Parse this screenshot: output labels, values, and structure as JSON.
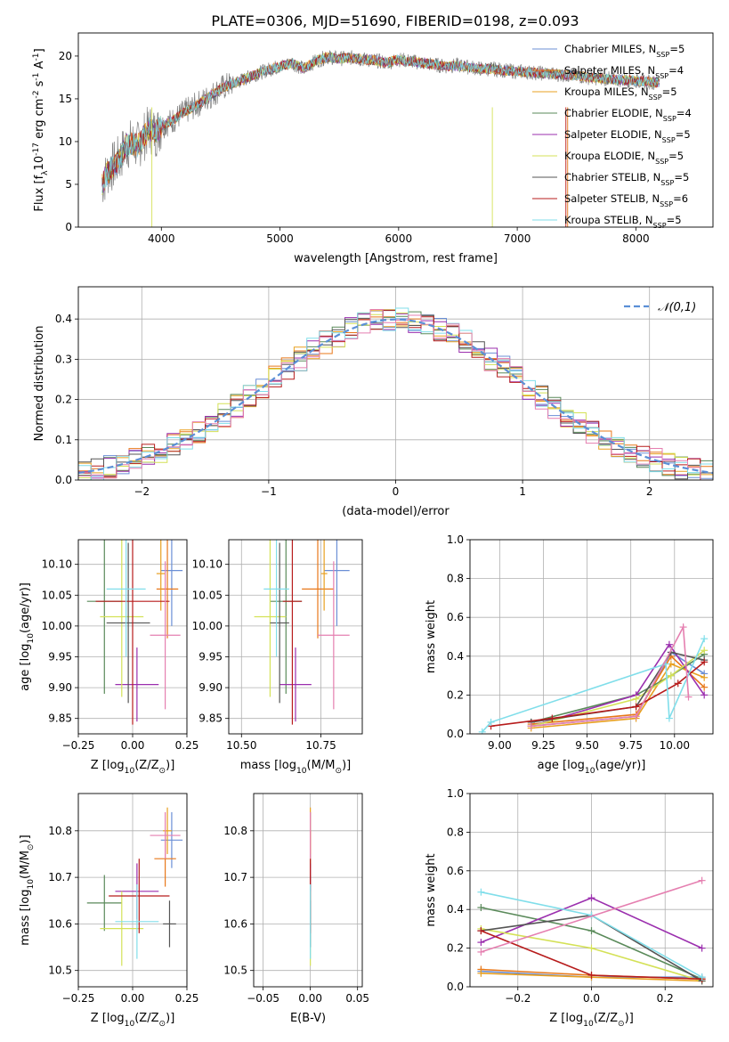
{
  "figure": {
    "title": "PLATE=0306, MJD=51690, FIBERID=0198, z=0.093"
  },
  "model_colors": [
    "#6b8fd6",
    "#e8781a",
    "#e8a020",
    "#5a8a5a",
    "#9b2fae",
    "#d4e157",
    "#555555",
    "#b71c1c",
    "#80deea",
    "#e57fb0"
  ],
  "chart_data": [
    {
      "id": "spectrum",
      "type": "line",
      "title": "PLATE=0306, MJD=51690, FIBERID=0198, z=0.093",
      "xlabel": "wavelength [Angstrom, rest frame]",
      "ylabel": "Flux [f$_\\lambda$10$^{-17}$ erg cm$^{-2}$ s$^{-1}$ A$^{-1}$]",
      "xlim": [
        3300,
        8650
      ],
      "ylim": [
        0,
        22.7
      ],
      "xticks": [
        4000,
        5000,
        6000,
        7000,
        8000
      ],
      "yticks": [
        0,
        5,
        10,
        15,
        20
      ],
      "grid": false,
      "legend_position": "top-right",
      "x": [
        3500,
        3550,
        3600,
        3650,
        3700,
        3750,
        3800,
        3850,
        3900,
        3950,
        4000,
        4100,
        4200,
        4300,
        4400,
        4500,
        4600,
        4700,
        4800,
        4900,
        5000,
        5100,
        5200,
        5300,
        5400,
        5500,
        5600,
        5700,
        5800,
        5900,
        6000,
        6100,
        6200,
        6300,
        6400,
        6500,
        6600,
        6700,
        6800,
        6900,
        7000,
        7100,
        7200,
        7300,
        7400,
        7500,
        7600,
        7700,
        7800,
        7900,
        8000,
        8100,
        8200
      ],
      "envelope": [
        5.0,
        6.5,
        7.2,
        8.0,
        9.5,
        9.8,
        9.5,
        10.5,
        11.5,
        11.0,
        11.8,
        12.5,
        13.5,
        14.3,
        15.2,
        16.2,
        16.8,
        17.3,
        17.9,
        18.4,
        18.8,
        19.2,
        18.5,
        19.4,
        19.9,
        19.7,
        19.8,
        19.6,
        19.5,
        19.2,
        19.6,
        19.4,
        19.2,
        19.0,
        18.8,
        18.9,
        18.7,
        18.5,
        18.5,
        18.3,
        18.2,
        18.1,
        18.0,
        17.9,
        17.8,
        17.7,
        17.5,
        17.4,
        17.3,
        17.2,
        17.1,
        17.0,
        16.9
      ],
      "series": [
        {
          "name": "Chabrier MILES, N$_{SSP}$=5"
        },
        {
          "name": "Salpeter MILES, N$_{SSP}$=4"
        },
        {
          "name": "Kroupa MILES, N$_{SSP}$=5"
        },
        {
          "name": "Chabrier ELODIE, N$_{SSP}$=4"
        },
        {
          "name": "Salpeter ELODIE, N$_{SSP}$=5"
        },
        {
          "name": "Kroupa ELODIE, N$_{SSP}$=5"
        },
        {
          "name": "Chabrier STELIB, N$_{SSP}$=5"
        },
        {
          "name": "Salpeter STELIB, N$_{SSP}$=6"
        },
        {
          "name": "Kroupa STELIB, N$_{SSP}$=5"
        }
      ]
    },
    {
      "id": "residuals",
      "type": "histogram",
      "xlabel": "(data-model)/error",
      "ylabel": "Normed distribution",
      "xlim": [
        -2.5,
        2.5
      ],
      "ylim": [
        0,
        0.48
      ],
      "xticks": [
        -2,
        -1,
        0,
        1,
        2
      ],
      "yticks": [
        0.0,
        0.1,
        0.2,
        0.3,
        0.4
      ],
      "grid": true,
      "legend": "$\\mathcal{N}(0,1)$",
      "legend_position": "top-right",
      "bin_width": 0.1
    },
    {
      "id": "age_vs_Z",
      "type": "errorbar",
      "xlabel": "Z [log$_{10}$(Z/Z$_\\odot$)]",
      "ylabel": "age  [log$_{10}$(age/yr)]",
      "xlim": [
        -0.25,
        0.25
      ],
      "ylim": [
        9.825,
        10.14
      ],
      "xticks": [
        -0.25,
        0.0,
        0.25
      ],
      "yticks": [
        9.85,
        9.9,
        9.95,
        10.0,
        10.05,
        10.1
      ],
      "grid": true,
      "points": [
        {
          "x": 0.18,
          "y": 10.09,
          "xerr": 0.05,
          "yerr": 0.09
        },
        {
          "x": 0.16,
          "y": 10.06,
          "xerr": 0.05,
          "yerr": 0.08
        },
        {
          "x": 0.13,
          "y": 10.085,
          "xerr": 0.02,
          "yerr": 0.06
        },
        {
          "x": -0.13,
          "y": 10.04,
          "xerr": 0.08,
          "yerr": 0.15
        },
        {
          "x": 0.02,
          "y": 9.905,
          "xerr": 0.1,
          "yerr": 0.06
        },
        {
          "x": -0.05,
          "y": 10.015,
          "xerr": 0.1,
          "yerr": 0.13
        },
        {
          "x": -0.02,
          "y": 10.005,
          "xerr": 0.1,
          "yerr": 0.13
        },
        {
          "x": 0.0,
          "y": 10.04,
          "xerr": 0.17,
          "yerr": 0.2
        },
        {
          "x": -0.03,
          "y": 10.06,
          "xerr": 0.09,
          "yerr": 0.11
        },
        {
          "x": 0.15,
          "y": 9.985,
          "xerr": 0.07,
          "yerr": 0.12
        }
      ]
    },
    {
      "id": "age_vs_mass",
      "type": "errorbar",
      "xlabel": "mass [log$_{10}$(M/M$_\\odot$)]",
      "ylabel": "",
      "xlim": [
        10.46,
        10.88
      ],
      "ylim": [
        9.825,
        10.14
      ],
      "xticks": [
        10.5,
        10.75
      ],
      "yticks": [
        9.85,
        9.9,
        9.95,
        10.0,
        10.05,
        10.1
      ],
      "grid": true,
      "points": [
        {
          "x": 10.8,
          "y": 10.09,
          "xerr": 0.04,
          "yerr": 0.09
        },
        {
          "x": 10.74,
          "y": 10.06,
          "xerr": 0.05,
          "yerr": 0.08
        },
        {
          "x": 10.76,
          "y": 10.085,
          "xerr": 0.01,
          "yerr": 0.06
        },
        {
          "x": 10.64,
          "y": 10.04,
          "xerr": 0.05,
          "yerr": 0.15
        },
        {
          "x": 10.67,
          "y": 9.905,
          "xerr": 0.05,
          "yerr": 0.06
        },
        {
          "x": 10.59,
          "y": 10.015,
          "xerr": 0.05,
          "yerr": 0.13
        },
        {
          "x": 10.62,
          "y": 10.005,
          "xerr": 0.03,
          "yerr": 0.13
        },
        {
          "x": 10.66,
          "y": 10.04,
          "xerr": 0.03,
          "yerr": 0.2
        },
        {
          "x": 10.61,
          "y": 10.06,
          "xerr": 0.04,
          "yerr": 0.11
        },
        {
          "x": 10.79,
          "y": 9.985,
          "xerr": 0.05,
          "yerr": 0.12
        }
      ]
    },
    {
      "id": "mass_weight_vs_age",
      "type": "line",
      "xlabel": "age  [log$_{10}$(age/yr)]",
      "ylabel": "mass weight",
      "xlim": [
        8.83,
        10.22
      ],
      "ylim": [
        0,
        1.0
      ],
      "xticks": [
        9.0,
        9.25,
        9.5,
        9.75,
        10.0
      ],
      "yticks": [
        0.0,
        0.2,
        0.4,
        0.6,
        0.8,
        1.0
      ],
      "grid": true,
      "series": [
        {
          "x": [
            9.18,
            9.78,
            9.98,
            10.17
          ],
          "y": [
            0.04,
            0.09,
            0.42,
            0.31
          ]
        },
        {
          "x": [
            9.18,
            9.78,
            9.98,
            10.17
          ],
          "y": [
            0.05,
            0.1,
            0.4,
            0.24
          ]
        },
        {
          "x": [
            9.18,
            9.78,
            9.98,
            10.17
          ],
          "y": [
            0.03,
            0.08,
            0.36,
            0.29
          ]
        },
        {
          "x": [
            9.18,
            9.78,
            9.98,
            10.17
          ],
          "y": [
            0.06,
            0.2,
            0.3,
            0.41
          ]
        },
        {
          "x": [
            9.18,
            9.78,
            9.97,
            10.17
          ],
          "y": [
            0.04,
            0.2,
            0.46,
            0.2
          ]
        },
        {
          "x": [
            9.18,
            9.78,
            9.98,
            10.17
          ],
          "y": [
            0.04,
            0.18,
            0.3,
            0.43
          ]
        },
        {
          "x": [
            9.18,
            9.78,
            9.98,
            10.17
          ],
          "y": [
            0.06,
            0.14,
            0.42,
            0.38
          ]
        },
        {
          "x": [
            8.95,
            9.3,
            9.78,
            10.02,
            10.17
          ],
          "y": [
            0.04,
            0.08,
            0.14,
            0.26,
            0.37
          ]
        },
        {
          "x": [
            8.9,
            8.95,
            9.95,
            9.97,
            10.17
          ],
          "y": [
            0.01,
            0.06,
            0.36,
            0.08,
            0.49
          ]
        },
        {
          "x": [
            9.18,
            9.78,
            10.05,
            10.08
          ],
          "y": [
            0.04,
            0.09,
            0.55,
            0.19
          ]
        }
      ]
    },
    {
      "id": "mass_vs_Z",
      "type": "errorbar",
      "xlabel": "Z [log$_{10}$(Z/Z$_\\odot$)]",
      "ylabel": "mass [log$_{10}$(M/M$_\\odot$)]",
      "xlim": [
        -0.25,
        0.25
      ],
      "ylim": [
        10.465,
        10.88
      ],
      "xticks": [
        -0.25,
        0.0,
        0.25
      ],
      "yticks": [
        10.5,
        10.6,
        10.7,
        10.8
      ],
      "grid": true,
      "points": [
        {
          "x": 0.18,
          "y": 10.78,
          "xerr": 0.05,
          "yerr": 0.06
        },
        {
          "x": 0.15,
          "y": 10.74,
          "xerr": 0.05,
          "yerr": 0.06
        },
        {
          "x": 0.16,
          "y": 10.8,
          "xerr": 0.02,
          "yerr": 0.05
        },
        {
          "x": -0.13,
          "y": 10.645,
          "xerr": 0.08,
          "yerr": 0.06
        },
        {
          "x": 0.02,
          "y": 10.67,
          "xerr": 0.1,
          "yerr": 0.06
        },
        {
          "x": -0.05,
          "y": 10.59,
          "xerr": 0.1,
          "yerr": 0.08
        },
        {
          "x": 0.17,
          "y": 10.6,
          "xerr": 0.03,
          "yerr": 0.05
        },
        {
          "x": 0.03,
          "y": 10.66,
          "xerr": 0.14,
          "yerr": 0.08
        },
        {
          "x": 0.02,
          "y": 10.605,
          "xerr": 0.1,
          "yerr": 0.08
        },
        {
          "x": 0.15,
          "y": 10.79,
          "xerr": 0.07,
          "yerr": 0.05
        }
      ]
    },
    {
      "id": "mass_vs_EBV",
      "type": "errorbar",
      "xlabel": "E(B-V)",
      "ylabel": "",
      "xlim": [
        -0.06,
        0.055
      ],
      "ylim": [
        10.465,
        10.88
      ],
      "xticks": [
        -0.05,
        0.0,
        0.05
      ],
      "yticks": [
        10.5,
        10.6,
        10.7,
        10.8
      ],
      "grid": true,
      "points": [
        {
          "x": 0.0,
          "y": 10.78,
          "xerr": 0.0,
          "yerr": 0.06
        },
        {
          "x": 0.0,
          "y": 10.74,
          "xerr": 0.0,
          "yerr": 0.06
        },
        {
          "x": 0.0,
          "y": 10.8,
          "xerr": 0.0,
          "yerr": 0.05
        },
        {
          "x": 0.0,
          "y": 10.645,
          "xerr": 0.0,
          "yerr": 0.06
        },
        {
          "x": 0.0,
          "y": 10.67,
          "xerr": 0.0,
          "yerr": 0.06
        },
        {
          "x": 0.0,
          "y": 10.59,
          "xerr": 0.0,
          "yerr": 0.08
        },
        {
          "x": 0.0,
          "y": 10.6,
          "xerr": 0.0,
          "yerr": 0.05
        },
        {
          "x": 0.0,
          "y": 10.66,
          "xerr": 0.0,
          "yerr": 0.08
        },
        {
          "x": 0.0,
          "y": 10.605,
          "xerr": 0.0,
          "yerr": 0.08
        },
        {
          "x": 0.0,
          "y": 10.79,
          "xerr": 0.0,
          "yerr": 0.05
        }
      ]
    },
    {
      "id": "mass_weight_vs_Z",
      "type": "line",
      "xlabel": "Z [log$_{10}$(Z/Z$_\\odot$)]",
      "ylabel": "mass weight",
      "xlim": [
        -0.33,
        0.33
      ],
      "ylim": [
        0,
        1.0
      ],
      "xticks": [
        -0.2,
        0.0,
        0.2
      ],
      "yticks": [
        0.0,
        0.2,
        0.4,
        0.6,
        0.8,
        1.0
      ],
      "grid": true,
      "series": [
        {
          "x": [
            -0.3,
            0.0,
            0.3
          ],
          "y": [
            0.08,
            0.05,
            0.05
          ]
        },
        {
          "x": [
            -0.3,
            0.0,
            0.3
          ],
          "y": [
            0.09,
            0.06,
            0.04
          ]
        },
        {
          "x": [
            -0.3,
            0.0,
            0.3
          ],
          "y": [
            0.07,
            0.05,
            0.03
          ]
        },
        {
          "x": [
            -0.3,
            0.0,
            0.3
          ],
          "y": [
            0.41,
            0.29,
            0.04
          ]
        },
        {
          "x": [
            -0.3,
            0.0,
            0.3
          ],
          "y": [
            0.23,
            0.46,
            0.2
          ]
        },
        {
          "x": [
            -0.3,
            0.0,
            0.3
          ],
          "y": [
            0.3,
            0.2,
            0.03
          ]
        },
        {
          "x": [
            -0.3,
            0.0,
            0.3
          ],
          "y": [
            0.29,
            0.37,
            0.03
          ]
        },
        {
          "x": [
            -0.3,
            0.0,
            0.3
          ],
          "y": [
            0.29,
            0.06,
            0.04
          ]
        },
        {
          "x": [
            -0.3,
            0.0,
            0.3
          ],
          "y": [
            0.49,
            0.37,
            0.05
          ]
        },
        {
          "x": [
            -0.3,
            0.3
          ],
          "y": [
            0.18,
            0.55
          ]
        }
      ]
    }
  ]
}
